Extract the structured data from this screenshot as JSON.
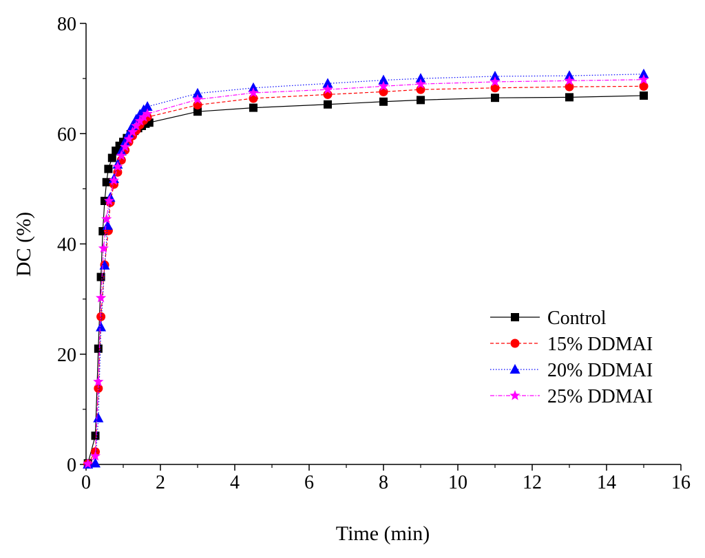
{
  "chart_data": {
    "type": "line",
    "title": "",
    "xlabel": "Time (min)",
    "ylabel": "DC (%)",
    "xlim": [
      0,
      16
    ],
    "ylim": [
      0,
      80
    ],
    "xticks": [
      0,
      2,
      4,
      6,
      8,
      10,
      12,
      14,
      16
    ],
    "yticks": [
      0,
      20,
      40,
      60,
      80
    ],
    "grid": false,
    "legend_position": "right-center",
    "series": [
      {
        "name": "Control",
        "color": "#000000",
        "marker": "square",
        "line_style": "solid",
        "x": [
          0.05,
          0.25,
          0.33,
          0.4,
          0.45,
          0.5,
          0.55,
          0.6,
          0.7,
          0.8,
          0.9,
          1.0,
          1.1,
          1.2,
          1.3,
          1.4,
          1.5,
          1.6,
          1.7,
          3.0,
          4.5,
          6.5,
          8.0,
          9.0,
          11.0,
          13.0,
          15.0
        ],
        "y": [
          0.2,
          5.2,
          21.0,
          34.0,
          42.3,
          47.8,
          51.2,
          53.6,
          55.6,
          56.9,
          57.8,
          58.5,
          59.2,
          59.9,
          60.5,
          61.0,
          61.4,
          61.8,
          62.0,
          64.0,
          64.7,
          65.3,
          65.8,
          66.1,
          66.5,
          66.6,
          66.9
        ]
      },
      {
        "name": "15% DDMAI",
        "color": "#ff0000",
        "marker": "circle",
        "line_style": "dashed",
        "x": [
          0.05,
          0.25,
          0.33,
          0.4,
          0.5,
          0.6,
          0.65,
          0.75,
          0.85,
          0.95,
          1.05,
          1.15,
          1.25,
          1.35,
          1.45,
          1.55,
          1.65,
          3.0,
          4.5,
          6.5,
          8.0,
          9.0,
          11.0,
          13.0,
          15.0
        ],
        "y": [
          0.1,
          2.3,
          13.8,
          26.8,
          36.2,
          42.4,
          47.5,
          50.8,
          53.0,
          55.2,
          57.0,
          58.5,
          59.6,
          60.6,
          61.6,
          62.4,
          63.0,
          65.2,
          66.4,
          67.1,
          67.6,
          68.0,
          68.3,
          68.5,
          68.6
        ]
      },
      {
        "name": "20% DDMAI",
        "color": "#0000ff",
        "marker": "triangle",
        "line_style": "dotted",
        "x": [
          0.05,
          0.25,
          0.33,
          0.4,
          0.5,
          0.58,
          0.65,
          0.75,
          0.85,
          0.95,
          1.05,
          1.15,
          1.25,
          1.35,
          1.45,
          1.55,
          1.65,
          3.0,
          4.5,
          6.5,
          8.0,
          9.0,
          11.0,
          13.0,
          15.0
        ],
        "y": [
          0.0,
          0.2,
          8.4,
          24.9,
          36.1,
          43.3,
          48.4,
          51.8,
          54.4,
          56.8,
          58.5,
          60.0,
          61.4,
          62.6,
          63.5,
          64.3,
          64.9,
          67.3,
          68.3,
          69.1,
          69.7,
          70.0,
          70.4,
          70.5,
          70.8
        ]
      },
      {
        "name": "25% DDMAI",
        "color": "#ff00ff",
        "marker": "star",
        "line_style": "dash-dot",
        "x": [
          0.05,
          0.25,
          0.33,
          0.4,
          0.47,
          0.55,
          0.62,
          0.75,
          0.85,
          0.95,
          1.05,
          1.15,
          1.25,
          1.35,
          1.45,
          1.55,
          1.65,
          3.0,
          4.5,
          6.5,
          8.0,
          9.0,
          11.0,
          13.0,
          15.0
        ],
        "y": [
          0.1,
          1.5,
          15.0,
          30.2,
          39.2,
          44.5,
          47.8,
          51.5,
          54.0,
          56.0,
          57.6,
          59.0,
          60.3,
          61.4,
          62.3,
          63.0,
          63.6,
          66.2,
          67.4,
          68.0,
          68.6,
          69.0,
          69.4,
          69.6,
          69.8
        ]
      }
    ]
  }
}
